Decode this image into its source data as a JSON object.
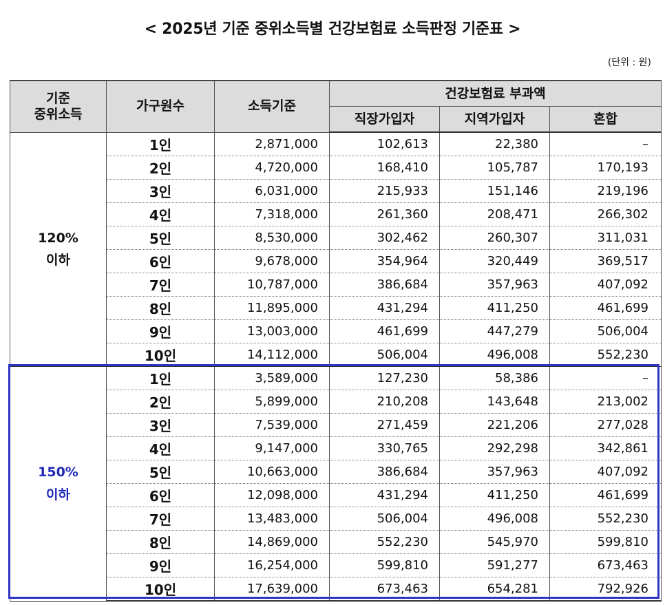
{
  "title": "< 2025년 기준 중위소득별 건강보험료 소득판정 기준표 >",
  "unit": "(단위 : 원)",
  "headers": {
    "median_income_line1": "기준",
    "median_income_line2": "중위소득",
    "household": "가구원수",
    "income_standard": "소득기준",
    "premium": "건강보험료 부과액",
    "employee": "직장가입자",
    "regional": "지역가입자",
    "mixed": "혼합"
  },
  "groups": [
    {
      "label_line1": "120%",
      "label_line2": "이하",
      "rows": [
        {
          "household": "1인",
          "income": "2,871,000",
          "employee": "102,613",
          "regional": "22,380",
          "mixed": "–"
        },
        {
          "household": "2인",
          "income": "4,720,000",
          "employee": "168,410",
          "regional": "105,787",
          "mixed": "170,193"
        },
        {
          "household": "3인",
          "income": "6,031,000",
          "employee": "215,933",
          "regional": "151,146",
          "mixed": "219,196"
        },
        {
          "household": "4인",
          "income": "7,318,000",
          "employee": "261,360",
          "regional": "208,471",
          "mixed": "266,302"
        },
        {
          "household": "5인",
          "income": "8,530,000",
          "employee": "302,462",
          "regional": "260,307",
          "mixed": "311,031"
        },
        {
          "household": "6인",
          "income": "9,678,000",
          "employee": "354,964",
          "regional": "320,449",
          "mixed": "369,517"
        },
        {
          "household": "7인",
          "income": "10,787,000",
          "employee": "386,684",
          "regional": "357,963",
          "mixed": "407,092"
        },
        {
          "household": "8인",
          "income": "11,895,000",
          "employee": "431,294",
          "regional": "411,250",
          "mixed": "461,699"
        },
        {
          "household": "9인",
          "income": "13,003,000",
          "employee": "461,699",
          "regional": "447,279",
          "mixed": "506,004"
        },
        {
          "household": "10인",
          "income": "14,112,000",
          "employee": "506,004",
          "regional": "496,008",
          "mixed": "552,230"
        }
      ]
    },
    {
      "label_line1": "150%",
      "label_line2": "이하",
      "rows": [
        {
          "household": "1인",
          "income": "3,589,000",
          "employee": "127,230",
          "regional": "58,386",
          "mixed": "–"
        },
        {
          "household": "2인",
          "income": "5,899,000",
          "employee": "210,208",
          "regional": "143,648",
          "mixed": "213,002"
        },
        {
          "household": "3인",
          "income": "7,539,000",
          "employee": "271,459",
          "regional": "221,206",
          "mixed": "277,028"
        },
        {
          "household": "4인",
          "income": "9,147,000",
          "employee": "330,765",
          "regional": "292,298",
          "mixed": "342,861"
        },
        {
          "household": "5인",
          "income": "10,663,000",
          "employee": "386,684",
          "regional": "357,963",
          "mixed": "407,092"
        },
        {
          "household": "6인",
          "income": "12,098,000",
          "employee": "431,294",
          "regional": "411,250",
          "mixed": "461,699"
        },
        {
          "household": "7인",
          "income": "13,483,000",
          "employee": "506,004",
          "regional": "496,008",
          "mixed": "552,230"
        },
        {
          "household": "8인",
          "income": "14,869,000",
          "employee": "552,230",
          "regional": "545,970",
          "mixed": "599,810"
        },
        {
          "household": "9인",
          "income": "16,254,000",
          "employee": "599,810",
          "regional": "591,277",
          "mixed": "673,463"
        },
        {
          "household": "10인",
          "income": "17,639,000",
          "employee": "673,463",
          "regional": "654,281",
          "mixed": "792,926"
        }
      ]
    }
  ],
  "colors": {
    "header_bg": "#dcdcdc",
    "highlight_border": "#2e34c4",
    "highlight_text": "#1f27b8"
  }
}
